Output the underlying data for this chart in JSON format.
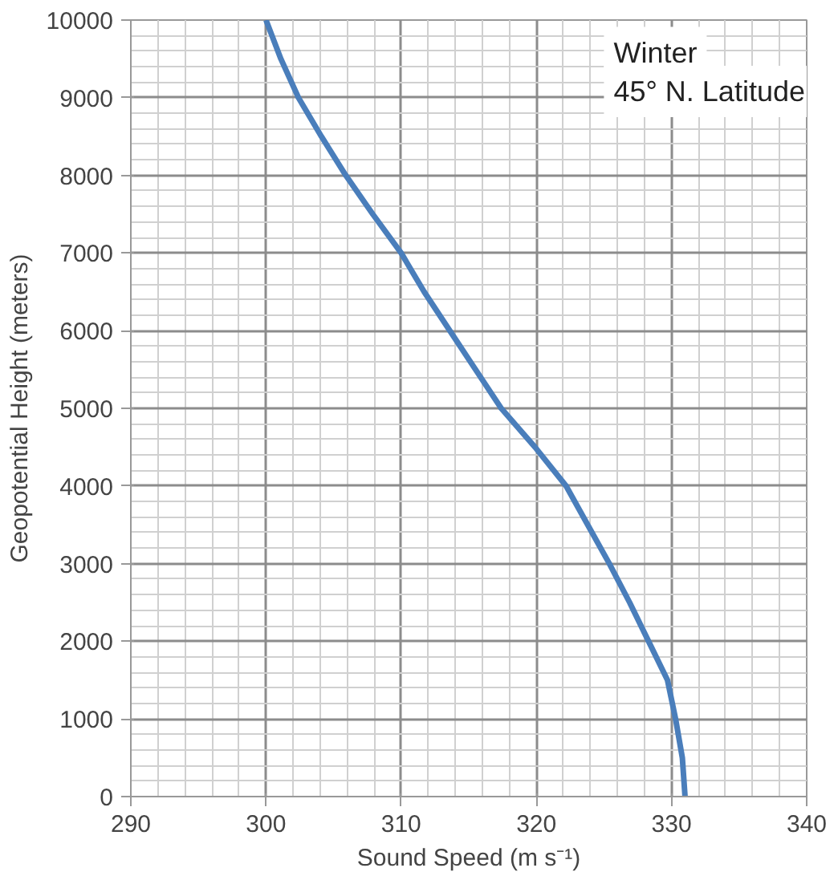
{
  "chart_data": {
    "type": "line",
    "xlabel": "Sound Speed (m s⁻¹)",
    "ylabel": "Geopotential Height (meters)",
    "annotations": [
      "Winter",
      "45° N. Latitude"
    ],
    "series": [
      {
        "color": "#4a7ebb",
        "x": [
          331.0,
          330.8,
          330.3,
          329.7,
          328.3,
          326.9,
          325.4,
          323.8,
          322.2,
          319.9,
          317.4,
          315.5,
          313.6,
          311.7,
          310.0,
          307.9,
          305.9,
          304.1,
          302.4,
          301.1,
          300.0
        ],
        "values": [
          0,
          500,
          1000,
          1500,
          2000,
          2500,
          3000,
          3500,
          4000,
          4500,
          5000,
          5500,
          6000,
          6500,
          7000,
          7500,
          8000,
          8500,
          9000,
          9500,
          10000
        ]
      }
    ],
    "xlim": [
      290,
      340
    ],
    "xticks": [
      290,
      300,
      310,
      320,
      330,
      340
    ],
    "ylim": [
      0,
      10000
    ],
    "yticks": [
      0,
      1000,
      2000,
      3000,
      4000,
      5000,
      6000,
      7000,
      8000,
      9000,
      10000
    ],
    "grid": true,
    "marker": "none",
    "line_style": "solid"
  }
}
